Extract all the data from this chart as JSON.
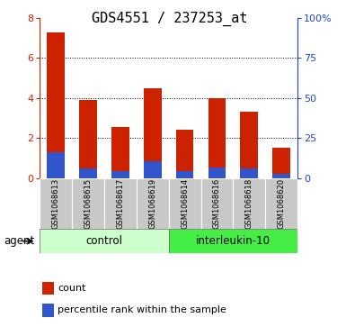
{
  "title": "GDS4551 / 237253_at",
  "samples": [
    "GSM1068613",
    "GSM1068615",
    "GSM1068617",
    "GSM1068619",
    "GSM1068614",
    "GSM1068616",
    "GSM1068618",
    "GSM1068620"
  ],
  "red_values": [
    7.3,
    3.9,
    2.55,
    4.5,
    2.4,
    4.0,
    3.3,
    1.5
  ],
  "blue_values": [
    1.3,
    0.5,
    0.35,
    0.85,
    0.35,
    0.55,
    0.5,
    0.2
  ],
  "ylim_left": [
    0,
    8
  ],
  "ylim_right": [
    0,
    100
  ],
  "yticks_left": [
    0,
    2,
    4,
    6,
    8
  ],
  "yticks_right": [
    0,
    25,
    50,
    75,
    100
  ],
  "ytick_labels_right": [
    "0",
    "25",
    "50",
    "75",
    "100%"
  ],
  "control_label": "control",
  "treatment_label": "interleukin-10",
  "agent_label": "agent",
  "bar_color_red": "#cc2200",
  "bar_color_blue": "#3355cc",
  "control_bg": "#ccffcc",
  "treatment_bg": "#44ee44",
  "tick_area_bg": "#c8c8c8",
  "bar_width": 0.55,
  "legend_count": "count",
  "legend_percentile": "percentile rank within the sample",
  "title_fontsize": 11,
  "axis_left_color": "#cc2200",
  "axis_right_color": "#2244cc",
  "grid_color": "#000000",
  "fig_width": 3.85,
  "fig_height": 3.63,
  "dpi": 100
}
